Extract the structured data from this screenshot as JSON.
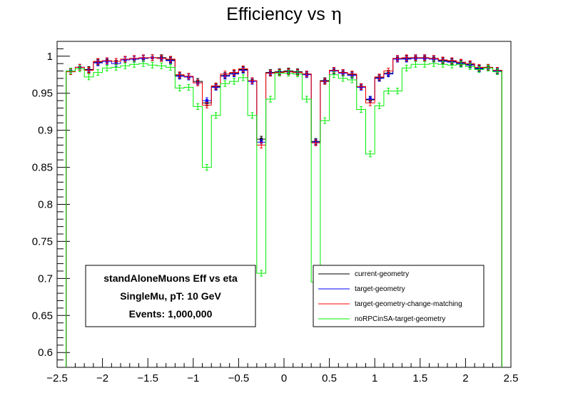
{
  "chart_data": {
    "type": "step-histogram",
    "title": "Efficiency vs",
    "title_symbol": "η",
    "xlabel": "",
    "ylabel": "",
    "xlim": [
      -2.5,
      2.5
    ],
    "ylim": [
      0.58,
      1.02
    ],
    "grid": false,
    "x_ticks": [
      -2.5,
      -2,
      -1.5,
      -1,
      -0.5,
      0,
      0.5,
      1,
      1.5,
      2,
      2.5
    ],
    "x_tick_labels": [
      "−2.5",
      "−2",
      "−1.5",
      "−1",
      "−0.5",
      "0",
      "0.5",
      "1",
      "1.5",
      "2",
      "2.5"
    ],
    "y_ticks": [
      0.6,
      0.65,
      0.7,
      0.75,
      0.8,
      0.85,
      0.9,
      0.95,
      1
    ],
    "y_tick_labels": [
      "0.6",
      "0.65",
      "0.7",
      "0.75",
      "0.8",
      "0.85",
      "0.9",
      "0.95",
      "1"
    ],
    "bin_edges": [
      -2.4,
      -2.3,
      -2.2,
      -2.1,
      -2.0,
      -1.9,
      -1.8,
      -1.7,
      -1.6,
      -1.5,
      -1.4,
      -1.3,
      -1.2,
      -1.1,
      -1.0,
      -0.9,
      -0.8,
      -0.7,
      -0.6,
      -0.5,
      -0.4,
      -0.3,
      -0.2,
      -0.1,
      0.0,
      0.1,
      0.2,
      0.3,
      0.4,
      0.5,
      0.6,
      0.7,
      0.8,
      0.9,
      1.0,
      1.1,
      1.2,
      1.3,
      1.4,
      1.5,
      1.6,
      1.7,
      1.8,
      1.9,
      2.0,
      2.1,
      2.2,
      2.3,
      2.4
    ],
    "info_box": {
      "lines": [
        "standAloneMuons Eff vs eta",
        "SingleMu, pT: 10 GeV",
        "Events: 1,000,000"
      ]
    },
    "legend_position": "bottom-right",
    "series": [
      {
        "name": "current-geometry",
        "color": "#000000",
        "values": [
          0.98,
          0.985,
          0.982,
          0.992,
          0.994,
          0.993,
          0.995,
          0.996,
          0.997,
          0.998,
          0.998,
          0.995,
          0.974,
          0.972,
          0.966,
          0.937,
          0.959,
          0.974,
          0.977,
          0.982,
          0.967,
          0.888,
          0.978,
          0.979,
          0.98,
          0.979,
          0.976,
          0.885,
          0.967,
          0.981,
          0.978,
          0.975,
          0.959,
          0.941,
          0.971,
          0.977,
          0.997,
          0.997,
          0.998,
          0.998,
          0.997,
          0.994,
          0.993,
          0.991,
          0.989,
          0.984,
          0.985,
          0.981
        ]
      },
      {
        "name": "target-geometry",
        "color": "#0000ff",
        "values": [
          0.98,
          0.985,
          0.981,
          0.991,
          0.993,
          0.99,
          0.995,
          0.996,
          0.997,
          0.998,
          0.997,
          0.994,
          0.973,
          0.972,
          0.964,
          0.94,
          0.958,
          0.973,
          0.976,
          0.981,
          0.966,
          0.884,
          0.977,
          0.978,
          0.979,
          0.978,
          0.975,
          0.884,
          0.966,
          0.98,
          0.977,
          0.974,
          0.958,
          0.942,
          0.97,
          0.976,
          0.996,
          0.996,
          0.997,
          0.997,
          0.996,
          0.993,
          0.992,
          0.99,
          0.988,
          0.983,
          0.984,
          0.98
        ]
      },
      {
        "name": "target-geometry-change-matching",
        "color": "#ff0000",
        "values": [
          0.979,
          0.985,
          0.981,
          0.993,
          0.994,
          0.993,
          0.996,
          0.997,
          0.998,
          0.998,
          0.997,
          0.996,
          0.975,
          0.973,
          0.964,
          0.934,
          0.96,
          0.976,
          0.978,
          0.983,
          0.967,
          0.88,
          0.977,
          0.978,
          0.979,
          0.978,
          0.976,
          0.883,
          0.966,
          0.981,
          0.978,
          0.976,
          0.959,
          0.937,
          0.972,
          0.98,
          0.997,
          0.998,
          0.998,
          0.998,
          0.997,
          0.995,
          0.994,
          0.992,
          0.99,
          0.985,
          0.985,
          0.981
        ]
      },
      {
        "name": "noRPCinSA-target-geometry",
        "color": "#00ee00",
        "values": [
          0.98,
          0.983,
          0.972,
          0.978,
          0.984,
          0.985,
          0.987,
          0.989,
          0.99,
          0.988,
          0.987,
          0.985,
          0.957,
          0.958,
          0.932,
          0.85,
          0.92,
          0.963,
          0.966,
          0.971,
          0.92,
          0.707,
          0.942,
          0.977,
          0.977,
          0.976,
          0.942,
          0.695,
          0.913,
          0.975,
          0.97,
          0.968,
          0.928,
          0.868,
          0.933,
          0.953,
          0.953,
          0.984,
          0.989,
          0.989,
          0.99,
          0.989,
          0.988,
          0.989,
          0.986,
          0.982,
          0.984,
          0.979
        ]
      }
    ]
  }
}
